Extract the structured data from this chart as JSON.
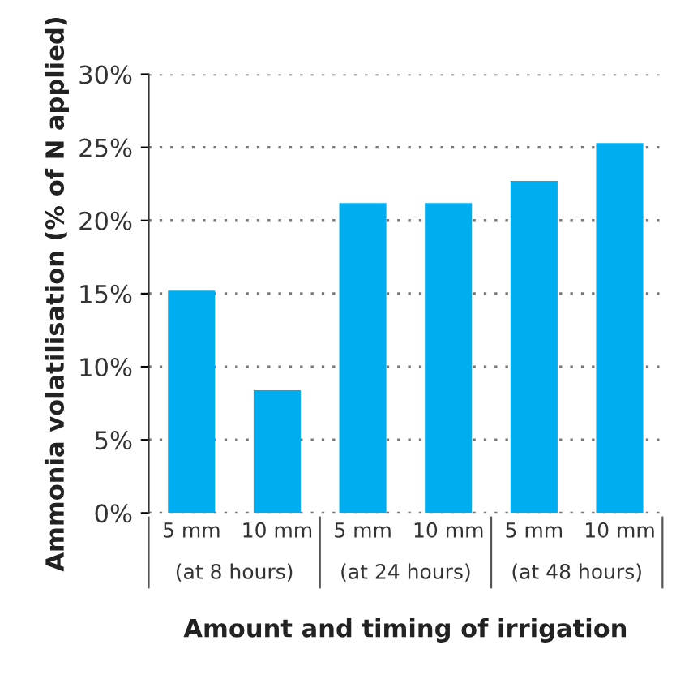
{
  "chart_data": {
    "type": "bar",
    "xlabel": "Amount and timing of irrigation",
    "ylabel": "Ammonia volatilisation (% of N applied)",
    "categories": [
      "5 mm",
      "10 mm",
      "5 mm",
      "10 mm",
      "5 mm",
      "10 mm"
    ],
    "values": [
      15.2,
      8.4,
      21.2,
      21.2,
      22.7,
      25.3
    ],
    "color": "#00aeef",
    "ylim": [
      0,
      30
    ],
    "yticks": [
      {
        "value": 0,
        "label": "0%"
      },
      {
        "value": 5,
        "label": "5%"
      },
      {
        "value": 10,
        "label": "10%"
      },
      {
        "value": 15,
        "label": "15%"
      },
      {
        "value": 20,
        "label": "20%"
      },
      {
        "value": 25,
        "label": "25%"
      },
      {
        "value": 30,
        "label": "30%"
      }
    ],
    "grid": "y",
    "annotations": [
      "(at 8 hours)",
      "(at 24 hours)",
      "(at 48 hours)"
    ]
  }
}
